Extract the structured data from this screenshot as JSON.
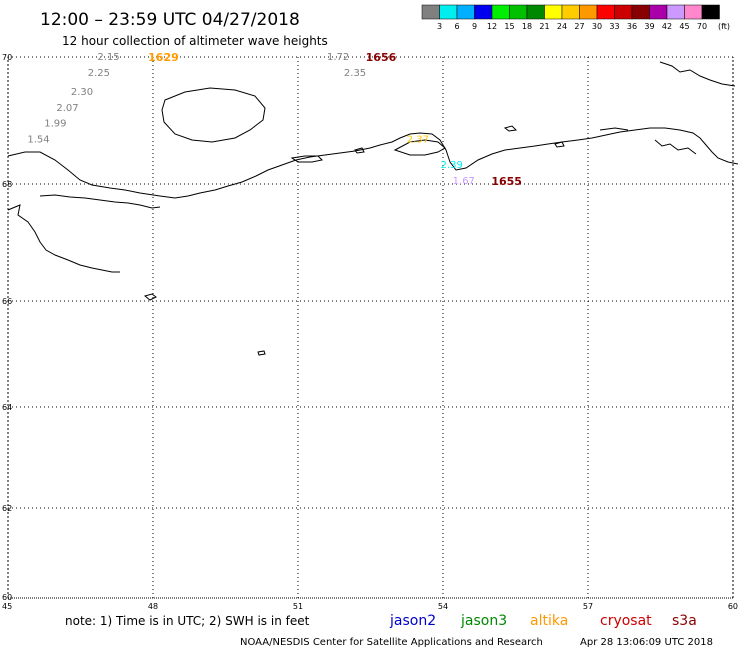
{
  "title": "12:00 – 23:59 UTC 04/27/2018",
  "subtitle": "12 hour collection of altimeter wave heights",
  "legend": {
    "labels": [
      "3",
      "6",
      "9",
      "12",
      "15",
      "18",
      "21",
      "24",
      "27",
      "30",
      "33",
      "36",
      "39",
      "42",
      "45",
      "70"
    ],
    "unit": "(ft)",
    "colors": [
      "#808080",
      "#00eeee",
      "#00b0ff",
      "#0000ee",
      "#00ee00",
      "#00c000",
      "#008800",
      "#ffff00",
      "#ffcc00",
      "#ff9900",
      "#ff0000",
      "#cc0000",
      "#880000",
      "#aa00aa",
      "#cc99ff",
      "#ff88cc",
      "#000000"
    ]
  },
  "axes": {
    "lon_labels": [
      "45",
      "48",
      "51",
      "54",
      "57",
      "60"
    ],
    "lat_labels": [
      "70",
      "68",
      "66",
      "64",
      "62",
      "60"
    ]
  },
  "tracks": [
    {
      "time": "1629",
      "time_color": "#ff9900",
      "time_lon": 47.9,
      "time_lat": 70.0,
      "points": [
        {
          "swh": "2.15",
          "lon": 46.85,
          "lat": 70.0,
          "color": "#808080"
        },
        {
          "swh": "2.25",
          "lon": 46.65,
          "lat": 69.75,
          "color": "#808080"
        },
        {
          "swh": "2.30",
          "lon": 46.3,
          "lat": 69.45,
          "color": "#808080"
        },
        {
          "swh": "2.07",
          "lon": 46.0,
          "lat": 69.2,
          "color": "#808080"
        },
        {
          "swh": "1.99",
          "lon": 45.75,
          "lat": 68.95,
          "color": "#808080"
        },
        {
          "swh": "1.54",
          "lon": 45.4,
          "lat": 68.7,
          "color": "#808080"
        }
      ]
    },
    {
      "time": "1656",
      "time_color": "#880000",
      "time_lon": 52.4,
      "time_lat": 70.0,
      "points": [
        {
          "swh": "1.72",
          "lon": 51.6,
          "lat": 70.0,
          "color": "#808080"
        },
        {
          "swh": "2.35",
          "lon": 51.95,
          "lat": 69.75,
          "color": "#808080"
        }
      ]
    },
    {
      "time": "1655",
      "time_color": "#880000",
      "time_lon": 55.0,
      "time_lat": 68.05,
      "points": [
        {
          "swh": "2.37",
          "lon": 53.25,
          "lat": 68.7,
          "color": "#ffcc00"
        },
        {
          "swh": "2.39",
          "lon": 53.95,
          "lat": 68.3,
          "color": "#00eeee"
        },
        {
          "swh": "1.67",
          "lon": 54.2,
          "lat": 68.05,
          "color": "#cc99ff"
        }
      ]
    }
  ],
  "note": "note:  1) Time is in UTC;  2) SWH is in feet",
  "satellites": [
    {
      "name": "jason2",
      "color": "#0000cc"
    },
    {
      "name": "jason3",
      "color": "#008800"
    },
    {
      "name": "altika",
      "color": "#ff9900"
    },
    {
      "name": "cryosat",
      "color": "#cc0000"
    },
    {
      "name": "s3a",
      "color": "#880000"
    }
  ],
  "credit": "NOAA/NESDIS Center for Satellite Applications and Research",
  "timestamp": "Apr 28 13:06:09 UTC 2018"
}
